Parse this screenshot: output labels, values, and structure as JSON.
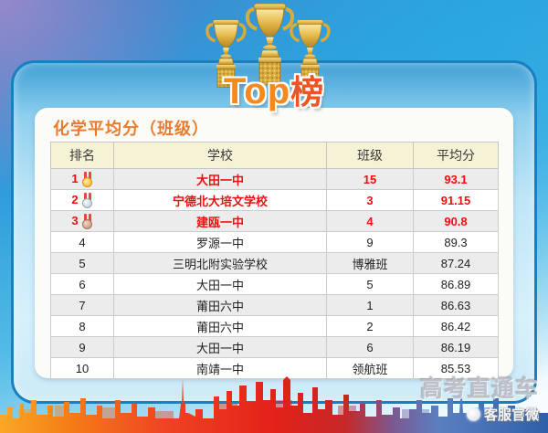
{
  "hero": {
    "title_en": "Top",
    "title_cn": "榜"
  },
  "scoreboard": {
    "title": "化学平均分（班级）",
    "columns": [
      "排名",
      "学校",
      "班级",
      "平均分"
    ],
    "rows": [
      {
        "rank": "1",
        "school": "大田一中",
        "class_name": "15",
        "avg_score": "93.1",
        "medal": "gold"
      },
      {
        "rank": "2",
        "school": "宁德北大培文学校",
        "class_name": "3",
        "avg_score": "91.15",
        "medal": "silver"
      },
      {
        "rank": "3",
        "school": "建瓯一中",
        "class_name": "4",
        "avg_score": "90.8",
        "medal": "bronze"
      },
      {
        "rank": "4",
        "school": "罗源一中",
        "class_name": "9",
        "avg_score": "89.3",
        "medal": null
      },
      {
        "rank": "5",
        "school": "三明北附实验学校",
        "class_name": "博雅班",
        "avg_score": "87.24",
        "medal": null
      },
      {
        "rank": "6",
        "school": "大田一中",
        "class_name": "5",
        "avg_score": "86.89",
        "medal": null
      },
      {
        "rank": "7",
        "school": "莆田六中",
        "class_name": "1",
        "avg_score": "86.63",
        "medal": null
      },
      {
        "rank": "8",
        "school": "莆田六中",
        "class_name": "2",
        "avg_score": "86.42",
        "medal": null
      },
      {
        "rank": "9",
        "school": "大田一中",
        "class_name": "6",
        "avg_score": "86.19",
        "medal": null
      },
      {
        "rank": "10",
        "school": "南靖一中",
        "class_name": "领航班",
        "avg_score": "85.53",
        "medal": null
      }
    ],
    "highlight_color": "#f10e10",
    "header_bg": "#f6f2d6",
    "title_color": "#e87c2e"
  },
  "watermark": {
    "brand": "高考直通车",
    "sub": "客服官微"
  },
  "chart_data": {
    "type": "table",
    "title": "化学平均分（班级）",
    "columns": [
      "排名",
      "学校",
      "班级",
      "平均分"
    ],
    "rows": [
      [
        1,
        "大田一中",
        "15",
        93.1
      ],
      [
        2,
        "宁德北大培文学校",
        "3",
        91.15
      ],
      [
        3,
        "建瓯一中",
        "4",
        90.8
      ],
      [
        4,
        "罗源一中",
        "9",
        89.3
      ],
      [
        5,
        "三明北附实验学校",
        "博雅班",
        87.24
      ],
      [
        6,
        "大田一中",
        "5",
        86.89
      ],
      [
        7,
        "莆田六中",
        "1",
        86.63
      ],
      [
        8,
        "莆田六中",
        "2",
        86.42
      ],
      [
        9,
        "大田一中",
        "6",
        86.19
      ],
      [
        10,
        "南靖一中",
        "领航班",
        85.53
      ]
    ]
  }
}
